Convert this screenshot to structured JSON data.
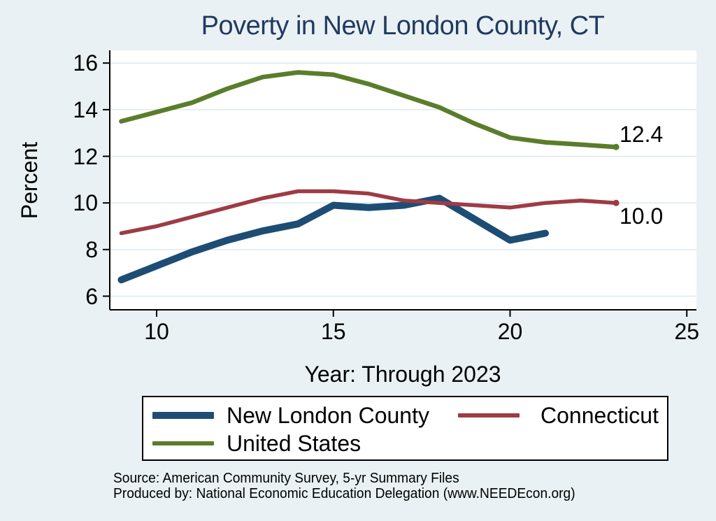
{
  "title": "Poverty in New London County, CT",
  "colors": {
    "background": "#e9f1f4",
    "plot_background": "#ffffff",
    "gridline": "#dfeaf2",
    "axis": "#000000",
    "title_text": "#213a60",
    "new_london_county": "#1e4d74",
    "connecticut": "#9e3b44",
    "united_states": "#5a7d2b"
  },
  "chart_data": {
    "type": "line",
    "title": "Poverty in New London County, CT",
    "xlabel": "Year: Through 2023",
    "ylabel": "Percent",
    "xlim": [
      8.67,
      25.27
    ],
    "ylim": [
      5.4,
      16.55
    ],
    "xticks": [
      10,
      15,
      20,
      25
    ],
    "yticks": [
      6,
      8,
      10,
      12,
      14,
      16
    ],
    "grid": "horizontal-only",
    "legend_position": "bottom",
    "series": [
      {
        "name": "New London County",
        "color": "#1e4d74",
        "stroke_width": 10,
        "x": [
          9,
          10,
          11,
          12,
          13,
          14,
          15,
          16,
          17,
          18,
          19,
          20,
          21
        ],
        "values": [
          6.7,
          7.3,
          7.9,
          8.4,
          8.8,
          9.1,
          9.9,
          9.8,
          9.9,
          10.2,
          9.3,
          8.4,
          8.7
        ],
        "end_label": "",
        "end_marker": false
      },
      {
        "name": "Connecticut",
        "color": "#9e3b44",
        "stroke_width": 5.5,
        "x": [
          9,
          10,
          11,
          12,
          13,
          14,
          15,
          16,
          17,
          18,
          19,
          20,
          21,
          22,
          23
        ],
        "values": [
          8.7,
          9.0,
          9.4,
          9.8,
          10.2,
          10.5,
          10.5,
          10.4,
          10.1,
          10.0,
          9.9,
          9.8,
          10.0,
          10.1,
          10.0
        ],
        "end_label": "10.0",
        "end_marker": true
      },
      {
        "name": "United States",
        "color": "#5a7d2b",
        "stroke_width": 6.5,
        "x": [
          9,
          10,
          11,
          12,
          13,
          14,
          15,
          16,
          17,
          18,
          19,
          20,
          21,
          22,
          23
        ],
        "values": [
          13.5,
          13.9,
          14.3,
          14.9,
          15.4,
          15.6,
          15.5,
          15.1,
          14.6,
          14.1,
          13.4,
          12.8,
          12.6,
          12.5,
          12.4
        ],
        "end_label": "12.4",
        "end_marker": true
      }
    ]
  },
  "end_labels": {
    "united_states": "12.4",
    "connecticut": "10.0"
  },
  "legend": {
    "items": [
      {
        "label": "New London County"
      },
      {
        "label": "Connecticut"
      },
      {
        "label": "United States"
      }
    ]
  },
  "source": {
    "line1": "Source: American Community Survey, 5-yr Summary Files",
    "line2": "Produced by: National Economic Education Delegation (www.NEEDEcon.org)"
  }
}
